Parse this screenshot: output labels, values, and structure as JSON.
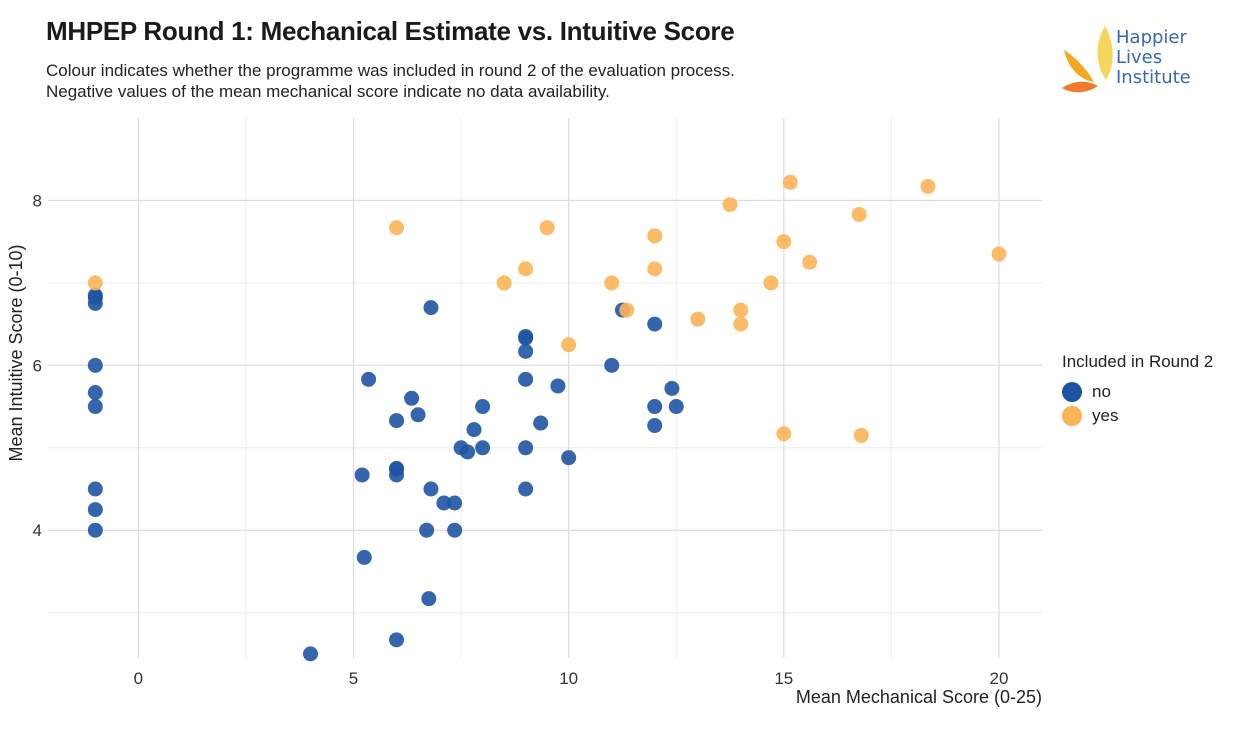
{
  "header": {
    "title": "MHPEP Round 1: Mechanical Estimate vs. Intuitive Score",
    "subtitle_line1": "Colour indicates whether the programme was included in round 2 of the evaluation process.",
    "subtitle_line2": "Negative values of the mean mechanical score indicate no data availability."
  },
  "logo": {
    "line1": "Happier",
    "line2": "Lives",
    "line3": "Institute",
    "text_color": "#3a67b5",
    "petal_colors": [
      "#f6d55c",
      "#f5a623",
      "#f27a2e"
    ]
  },
  "legend": {
    "title": "Included in Round 2",
    "items": [
      {
        "label": "no",
        "color": "#1f54a3"
      },
      {
        "label": "yes",
        "color": "#fbb456"
      }
    ]
  },
  "chart_data": {
    "type": "scatter",
    "xlabel": "Mean Mechanical Score (0-25)",
    "ylabel": "Mean Intuitive Score (0-10)",
    "xlim": [
      -2.1,
      21.0
    ],
    "ylim": [
      2.45,
      9.0
    ],
    "x_ticks": [
      0,
      5,
      10,
      15,
      20
    ],
    "y_ticks": [
      4,
      6,
      8
    ],
    "grid": true,
    "legend_position": "right",
    "series": [
      {
        "name": "no",
        "color": "#1f54a3",
        "points": [
          [
            -1,
            6.85
          ],
          [
            -1,
            6.82
          ],
          [
            -1,
            6.75
          ],
          [
            -1,
            6.0
          ],
          [
            -1,
            5.67
          ],
          [
            -1,
            5.5
          ],
          [
            -1,
            4.5
          ],
          [
            -1,
            4.25
          ],
          [
            -1,
            4.0
          ],
          [
            4,
            2.5
          ],
          [
            5.2,
            4.67
          ],
          [
            5.25,
            3.67
          ],
          [
            5.35,
            5.83
          ],
          [
            6,
            5.33
          ],
          [
            6,
            4.75
          ],
          [
            6,
            4.74
          ],
          [
            6,
            4.67
          ],
          [
            6,
            2.67
          ],
          [
            6.35,
            5.6
          ],
          [
            6.5,
            5.4
          ],
          [
            6.7,
            4.0
          ],
          [
            6.75,
            3.17
          ],
          [
            6.8,
            6.7
          ],
          [
            6.8,
            4.5
          ],
          [
            7.1,
            4.33
          ],
          [
            7.35,
            4.0
          ],
          [
            7.35,
            4.33
          ],
          [
            7.5,
            5.0
          ],
          [
            7.65,
            4.95
          ],
          [
            7.8,
            5.22
          ],
          [
            8.0,
            5.5
          ],
          [
            8.0,
            5.0
          ],
          [
            9,
            6.35
          ],
          [
            9,
            6.33
          ],
          [
            9,
            6.17
          ],
          [
            9,
            5.83
          ],
          [
            9,
            5.0
          ],
          [
            9,
            4.5
          ],
          [
            9.35,
            5.3
          ],
          [
            9.75,
            5.75
          ],
          [
            10,
            4.88
          ],
          [
            11,
            6.0
          ],
          [
            11.25,
            6.67
          ],
          [
            12,
            6.5
          ],
          [
            12,
            5.5
          ],
          [
            12,
            5.27
          ],
          [
            12.4,
            5.72
          ],
          [
            12.5,
            5.5
          ]
        ]
      },
      {
        "name": "yes",
        "color": "#fbb456",
        "points": [
          [
            -1,
            7.0
          ],
          [
            6,
            7.67
          ],
          [
            8.5,
            7.0
          ],
          [
            9,
            7.17
          ],
          [
            9.5,
            7.67
          ],
          [
            10,
            6.25
          ],
          [
            11,
            7.0
          ],
          [
            11.35,
            6.67
          ],
          [
            12,
            7.57
          ],
          [
            12,
            7.17
          ],
          [
            13,
            6.56
          ],
          [
            13.75,
            7.95
          ],
          [
            14,
            6.67
          ],
          [
            14,
            6.5
          ],
          [
            14.7,
            7.0
          ],
          [
            15,
            7.5
          ],
          [
            15,
            5.17
          ],
          [
            15.15,
            8.22
          ],
          [
            15.6,
            7.25
          ],
          [
            16.75,
            7.83
          ],
          [
            16.8,
            5.15
          ],
          [
            18.35,
            8.17
          ],
          [
            20,
            7.35
          ]
        ]
      }
    ]
  }
}
